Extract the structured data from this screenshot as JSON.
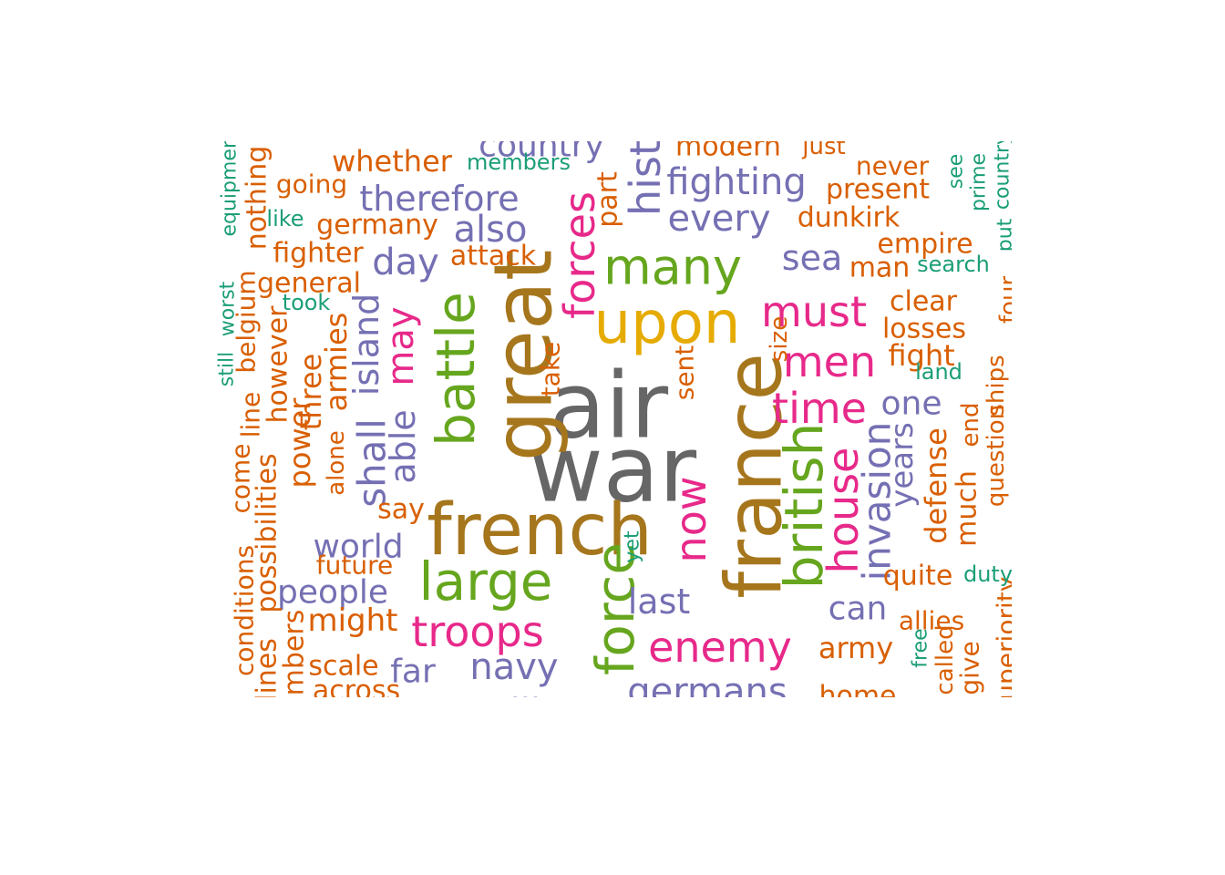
{
  "colors": {
    "gray": "#666666",
    "brown": "#a6761d",
    "gold": "#e6ab02",
    "green": "#66a61e",
    "pink": "#e7298a",
    "purple": "#7570b3",
    "orange": "#d95f02",
    "teal": "#1b9e77"
  },
  "words": [
    {
      "text": "air",
      "color": "gray"
    },
    {
      "text": "war",
      "color": "gray"
    },
    {
      "text": "french",
      "color": "brown"
    },
    {
      "text": "great",
      "color": "brown"
    },
    {
      "text": "france",
      "color": "brown"
    },
    {
      "text": "upon",
      "color": "gold"
    },
    {
      "text": "many",
      "color": "green"
    },
    {
      "text": "large",
      "color": "green"
    },
    {
      "text": "battle",
      "color": "green"
    },
    {
      "text": "force",
      "color": "green"
    },
    {
      "text": "british",
      "color": "green"
    },
    {
      "text": "forces",
      "color": "pink"
    },
    {
      "text": "must",
      "color": "pink"
    },
    {
      "text": "men",
      "color": "pink"
    },
    {
      "text": "time",
      "color": "pink"
    },
    {
      "text": "troops",
      "color": "pink"
    },
    {
      "text": "enemy",
      "color": "pink"
    },
    {
      "text": "now",
      "color": "pink"
    },
    {
      "text": "house",
      "color": "pink"
    },
    {
      "text": "may",
      "color": "pink"
    },
    {
      "text": "fighting",
      "color": "purple"
    },
    {
      "text": "every",
      "color": "purple"
    },
    {
      "text": "therefore",
      "color": "purple"
    },
    {
      "text": "also",
      "color": "purple"
    },
    {
      "text": "day",
      "color": "purple"
    },
    {
      "text": "sea",
      "color": "purple"
    },
    {
      "text": "one",
      "color": "purple"
    },
    {
      "text": "can",
      "color": "purple"
    },
    {
      "text": "last",
      "color": "purple"
    },
    {
      "text": "navy",
      "color": "purple"
    },
    {
      "text": "germans",
      "color": "purple"
    },
    {
      "text": "world",
      "color": "purple"
    },
    {
      "text": "people",
      "color": "purple"
    },
    {
      "text": "far",
      "color": "purple"
    },
    {
      "text": "shall",
      "color": "purple"
    },
    {
      "text": "island",
      "color": "purple"
    },
    {
      "text": "able",
      "color": "purple"
    },
    {
      "text": "invasion",
      "color": "purple"
    },
    {
      "text": "years",
      "color": "purple"
    },
    {
      "text": "hist",
      "color": "purple"
    },
    {
      "text": "country",
      "color": "purple"
    },
    {
      "text": "military",
      "color": "purple"
    },
    {
      "text": "whether",
      "color": "orange"
    },
    {
      "text": "going",
      "color": "orange"
    },
    {
      "text": "germany",
      "color": "orange"
    },
    {
      "text": "fighter",
      "color": "orange"
    },
    {
      "text": "general",
      "color": "orange"
    },
    {
      "text": "attack",
      "color": "orange"
    },
    {
      "text": "never",
      "color": "orange"
    },
    {
      "text": "present",
      "color": "orange"
    },
    {
      "text": "dunkirk",
      "color": "orange"
    },
    {
      "text": "empire",
      "color": "orange"
    },
    {
      "text": "man",
      "color": "orange"
    },
    {
      "text": "clear",
      "color": "orange"
    },
    {
      "text": "losses",
      "color": "orange"
    },
    {
      "text": "fight",
      "color": "orange"
    },
    {
      "text": "quite",
      "color": "orange"
    },
    {
      "text": "allies",
      "color": "orange"
    },
    {
      "text": "army",
      "color": "orange"
    },
    {
      "text": "home",
      "color": "orange"
    },
    {
      "text": "might",
      "color": "orange"
    },
    {
      "text": "scale",
      "color": "orange"
    },
    {
      "text": "across",
      "color": "orange"
    },
    {
      "text": "say",
      "color": "orange"
    },
    {
      "text": "future",
      "color": "orange"
    },
    {
      "text": "modern",
      "color": "orange"
    },
    {
      "text": "just",
      "color": "orange"
    },
    {
      "text": "part",
      "color": "orange"
    },
    {
      "text": "take",
      "color": "orange"
    },
    {
      "text": "sent",
      "color": "orange"
    },
    {
      "text": "size",
      "color": "orange"
    },
    {
      "text": "nothing",
      "color": "orange"
    },
    {
      "text": "belgium",
      "color": "orange"
    },
    {
      "text": "however",
      "color": "orange"
    },
    {
      "text": "line",
      "color": "orange"
    },
    {
      "text": "come",
      "color": "orange"
    },
    {
      "text": "possibilities",
      "color": "orange"
    },
    {
      "text": "conditions",
      "color": "orange"
    },
    {
      "text": "three",
      "color": "orange"
    },
    {
      "text": "armies",
      "color": "orange"
    },
    {
      "text": "power",
      "color": "orange"
    },
    {
      "text": "alone",
      "color": "orange"
    },
    {
      "text": "four",
      "color": "orange"
    },
    {
      "text": "end",
      "color": "orange"
    },
    {
      "text": "much",
      "color": "orange"
    },
    {
      "text": "question",
      "color": "orange"
    },
    {
      "text": "ships",
      "color": "orange"
    },
    {
      "text": "defense",
      "color": "orange"
    },
    {
      "text": "called",
      "color": "orange"
    },
    {
      "text": "give",
      "color": "orange"
    },
    {
      "text": "superiority",
      "color": "orange"
    },
    {
      "text": "lines",
      "color": "orange"
    },
    {
      "text": "numbers",
      "color": "orange"
    },
    {
      "text": "members",
      "color": "teal"
    },
    {
      "text": "like",
      "color": "teal"
    },
    {
      "text": "took",
      "color": "teal"
    },
    {
      "text": "search",
      "color": "teal"
    },
    {
      "text": "land",
      "color": "teal"
    },
    {
      "text": "duty",
      "color": "teal"
    },
    {
      "text": "free",
      "color": "teal"
    },
    {
      "text": "yet",
      "color": "teal"
    },
    {
      "text": "see",
      "color": "teal"
    },
    {
      "text": "prime",
      "color": "teal"
    },
    {
      "text": "put",
      "color": "teal"
    },
    {
      "text": "country",
      "color": "teal"
    },
    {
      "text": "equipment",
      "color": "teal"
    },
    {
      "text": "still",
      "color": "teal"
    },
    {
      "text": "worst",
      "color": "teal"
    }
  ]
}
